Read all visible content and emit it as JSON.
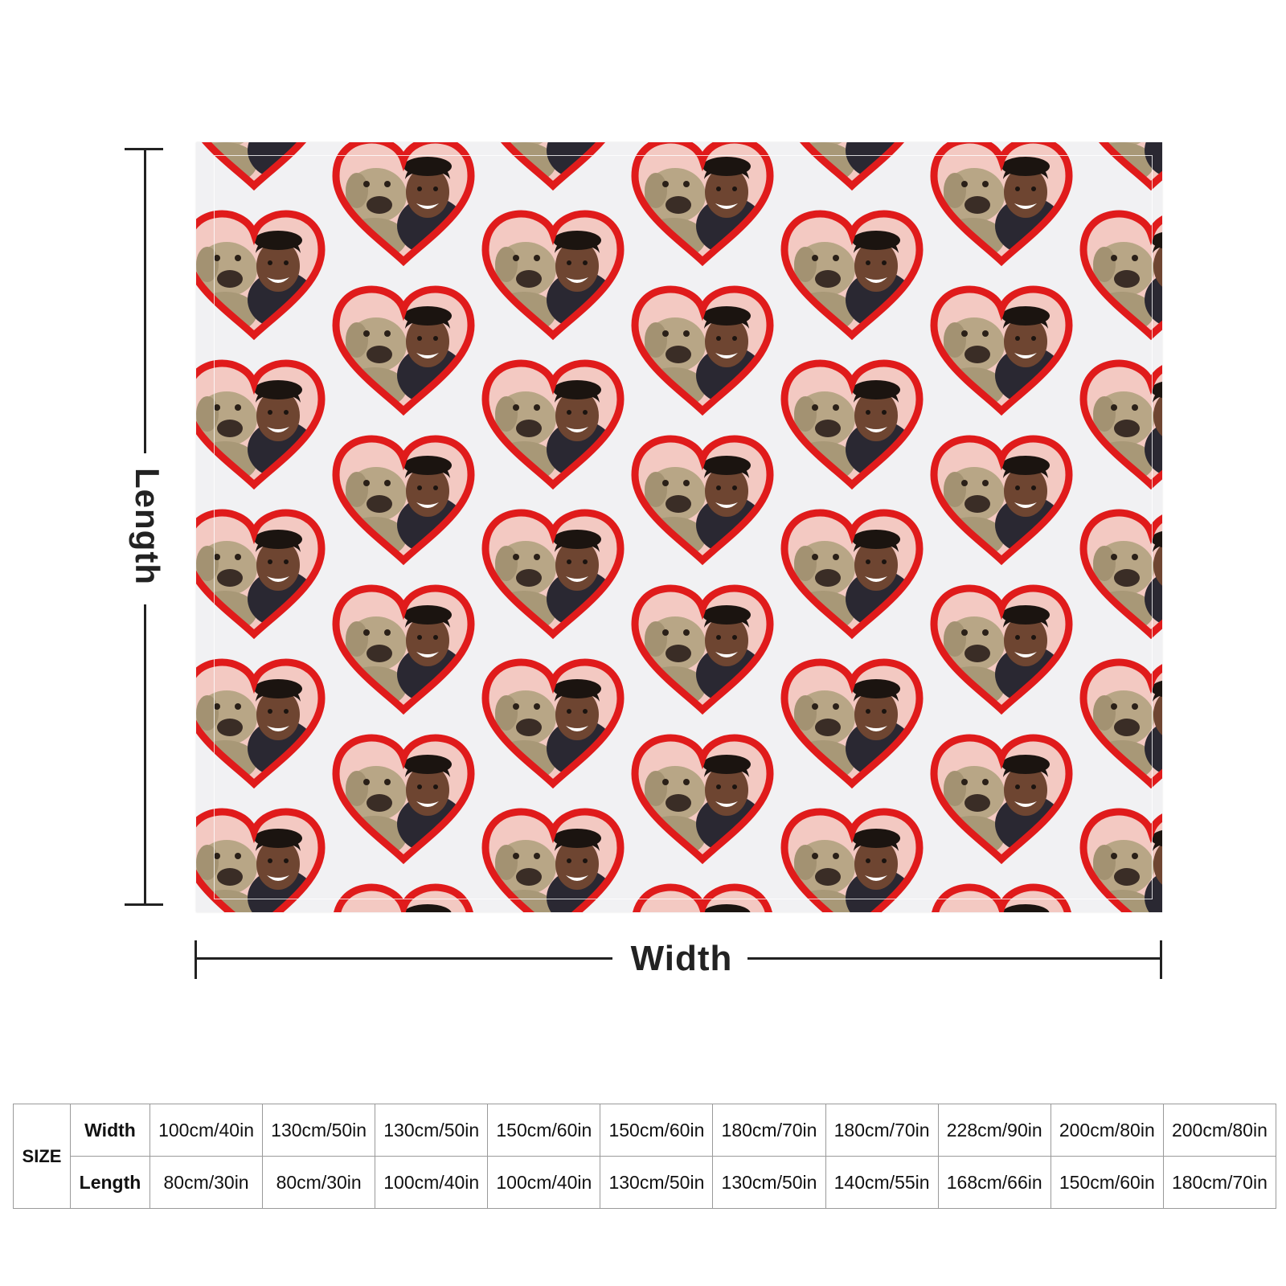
{
  "dimensions": {
    "length_label": "Length",
    "width_label": "Width"
  },
  "size_table": {
    "size_label": "SIZE",
    "width_label": "Width",
    "length_label": "Length",
    "widths": [
      "100cm/40in",
      "130cm/50in",
      "130cm/50in",
      "150cm/60in",
      "150cm/60in",
      "180cm/70in",
      "180cm/70in",
      "228cm/90in",
      "200cm/80in",
      "200cm/80in"
    ],
    "lengths": [
      "80cm/30in",
      "80cm/30in",
      "100cm/40in",
      "100cm/40in",
      "130cm/50in",
      "130cm/50in",
      "140cm/55in",
      "168cm/66in",
      "150cm/60in",
      "180cm/70in"
    ]
  },
  "colors": {
    "heart_red": "#e01b1b",
    "heart_fill": "#f3c9c2",
    "background": "#f1f1f3"
  }
}
